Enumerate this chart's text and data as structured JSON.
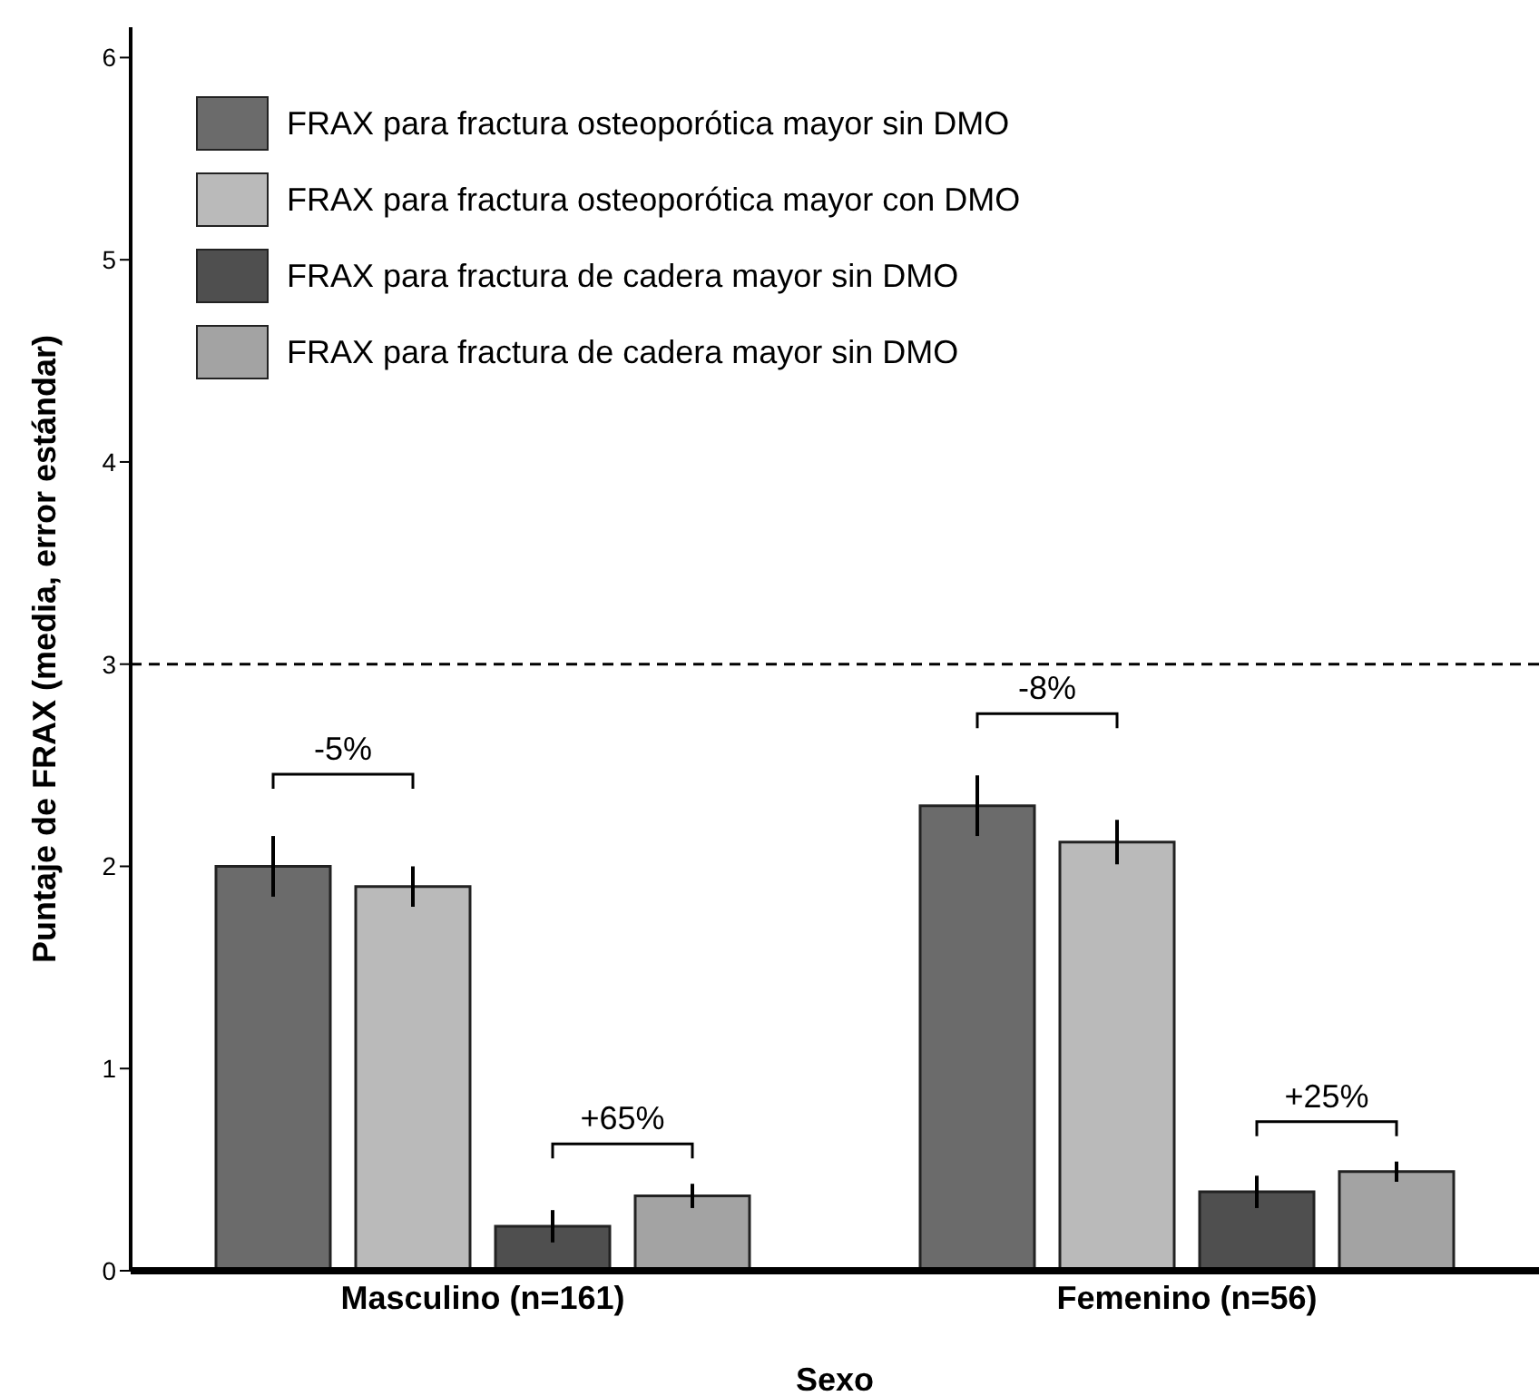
{
  "chart_data": {
    "type": "bar",
    "xlabel": "Sexo",
    "ylabel": "Puntaje de FRAX (media, error estándar)",
    "categories": [
      "Masculino (n=161)",
      "Femenino (n=56)"
    ],
    "series": [
      {
        "name": "FRAX para fractura osteoporótica mayor sin DMO",
        "color": "#6b6b6b",
        "values": [
          2.0,
          2.3
        ],
        "errors": [
          0.15,
          0.15
        ]
      },
      {
        "name": "FRAX para fractura osteoporótica mayor con DMO",
        "color": "#bababa",
        "values": [
          1.9,
          2.12
        ],
        "errors": [
          0.1,
          0.11
        ]
      },
      {
        "name": "FRAX para fractura de cadera mayor sin DMO",
        "color": "#4f4f4f",
        "values": [
          0.22,
          0.39
        ],
        "errors": [
          0.08,
          0.08
        ]
      },
      {
        "name": "FRAX para fractura de cadera mayor sin DMO",
        "color": "#a3a3a3",
        "values": [
          0.37,
          0.49
        ],
        "errors": [
          0.06,
          0.05
        ]
      }
    ],
    "ylim": [
      0,
      6.15
    ],
    "yticks": [
      0,
      1,
      2,
      3,
      4,
      5,
      6
    ],
    "grid": false,
    "legend": "top left",
    "ref_lines": [
      {
        "axis": "y",
        "value": 3,
        "line_style": "dashed"
      }
    ],
    "annotations": [
      "-5%",
      "+65%",
      "-8%",
      "+25%"
    ]
  }
}
